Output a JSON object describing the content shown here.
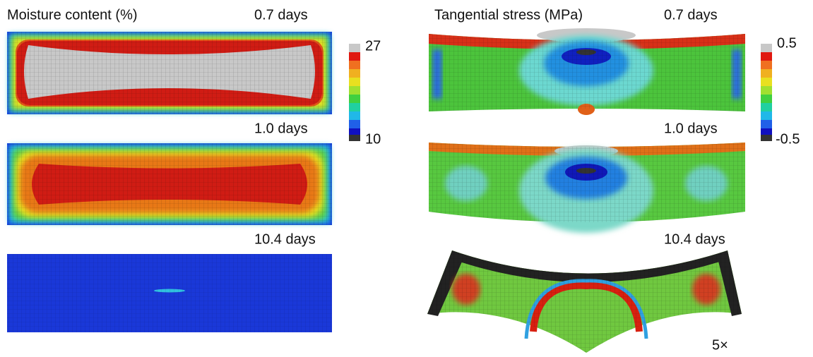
{
  "left": {
    "title": "Moisture content (%)",
    "panels": [
      {
        "time": "0.7 days"
      },
      {
        "time": "1.0 days"
      },
      {
        "time": "10.4 days"
      }
    ],
    "colorbar": {
      "max": "27",
      "min": "10"
    }
  },
  "right": {
    "title": "Tangential stress (MPa)",
    "panels": [
      {
        "time": "0.7 days"
      },
      {
        "time": "1.0 days"
      },
      {
        "time": "10.4 days"
      }
    ],
    "colorbar": {
      "max": "0.5",
      "min": "-0.5"
    }
  },
  "deformation_scale": "5×"
}
